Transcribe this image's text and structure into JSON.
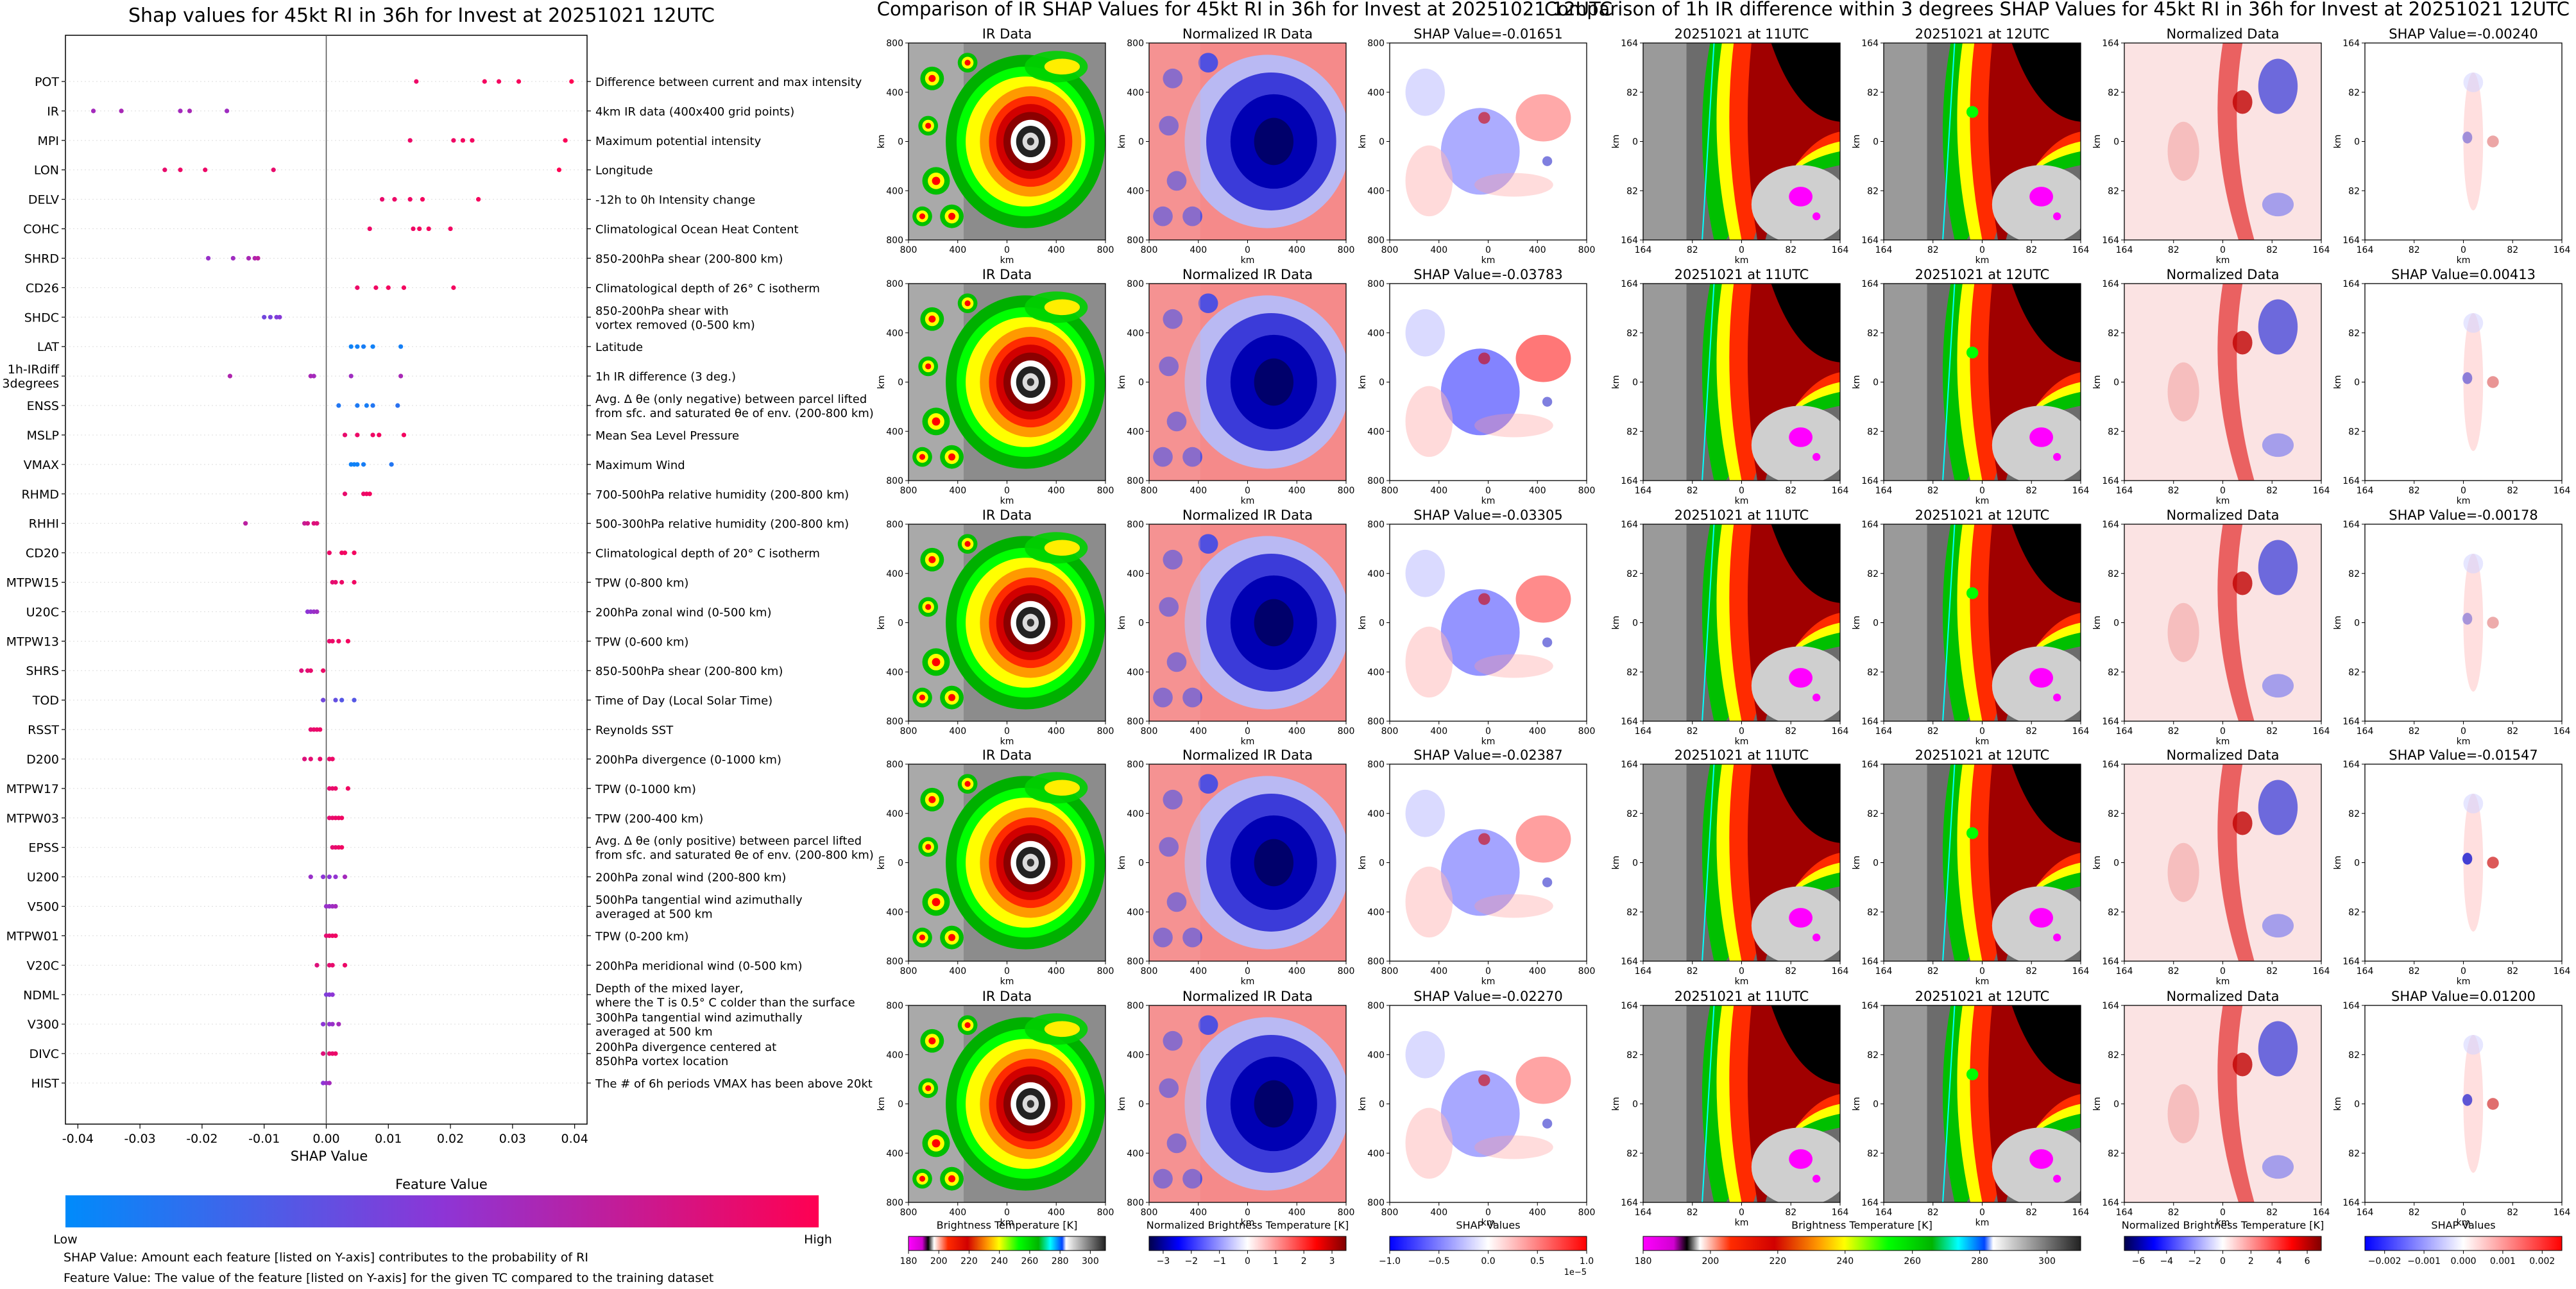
{
  "chart_data": [
    {
      "type": "scatter",
      "title": "Shap values for 45kt RI in 36h for Invest at 20251021 12UTC",
      "xlabel": "SHAP Value",
      "xlim": [
        -0.042,
        0.042
      ],
      "xticks": [
        "-0.04",
        "-0.03",
        "-0.02",
        "-0.01",
        "0.00",
        "0.01",
        "0.02",
        "0.03",
        "0.04"
      ],
      "xtick_values": [
        -0.04,
        -0.03,
        -0.02,
        -0.01,
        0,
        0.01,
        0.02,
        0.03,
        0.04
      ],
      "features": [
        {
          "name": "POT",
          "desc": [
            "Difference between current and max intensity"
          ],
          "x": [
            0.0145,
            0.0255,
            0.0278,
            0.031,
            0.0395
          ],
          "c": [
            0.92,
            0.95,
            0.95,
            0.97,
            1.0
          ]
        },
        {
          "name": "IR",
          "desc": [
            "4km IR data (400x400 grid points)"
          ],
          "x": [
            -0.0375,
            -0.033,
            -0.0235,
            -0.022,
            -0.016
          ],
          "c": [
            0.6,
            0.62,
            0.6,
            0.62,
            0.58
          ]
        },
        {
          "name": "MPI",
          "desc": [
            "Maximum potential intensity"
          ],
          "x": [
            0.0135,
            0.0205,
            0.022,
            0.0235,
            0.0385
          ],
          "c": [
            0.92,
            0.93,
            0.95,
            0.95,
            0.98
          ]
        },
        {
          "name": "LON",
          "desc": [
            "Longitude"
          ],
          "x": [
            -0.026,
            -0.0235,
            -0.0195,
            -0.0085,
            0.0375
          ],
          "c": [
            0.9,
            0.92,
            0.92,
            0.9,
            1.0
          ]
        },
        {
          "name": "DELV",
          "desc": [
            "-12h to 0h Intensity change"
          ],
          "x": [
            0.009,
            0.011,
            0.0135,
            0.0155,
            0.0245
          ],
          "c": [
            0.9,
            0.92,
            0.93,
            0.95,
            0.96
          ]
        },
        {
          "name": "COHC",
          "desc": [
            "Climatological Ocean Heat Content"
          ],
          "x": [
            0.007,
            0.014,
            0.015,
            0.0165,
            0.02
          ],
          "c": [
            0.92,
            0.93,
            0.95,
            0.95,
            0.94
          ]
        },
        {
          "name": "SHRD",
          "desc": [
            "850-200hPa shear (200-800 km)"
          ],
          "x": [
            -0.019,
            -0.015,
            -0.0125,
            -0.0115,
            -0.011
          ],
          "c": [
            0.55,
            0.58,
            0.62,
            0.66,
            0.7
          ]
        },
        {
          "name": "CD26",
          "desc": [
            "Climatological depth of 26° C isotherm"
          ],
          "x": [
            0.005,
            0.008,
            0.01,
            0.0125,
            0.0205
          ],
          "c": [
            0.92,
            0.94,
            0.95,
            0.95,
            0.95
          ]
        },
        {
          "name": "SHDC",
          "desc": [
            "850-200hPa shear with",
            "vortex removed (0-500 km)"
          ],
          "x": [
            -0.01,
            -0.009,
            -0.008,
            -0.0075
          ],
          "c": [
            0.4,
            0.42,
            0.45,
            0.48
          ]
        },
        {
          "name": "LAT",
          "desc": [
            "Latitude"
          ],
          "x": [
            0.004,
            0.005,
            0.006,
            0.0075,
            0.012
          ],
          "c": [
            0.05,
            0.06,
            0.08,
            0.06,
            0.07
          ]
        },
        {
          "name": "1h-IRdiff\n3degrees",
          "desc": [
            "1h IR difference (3 deg.)"
          ],
          "x": [
            -0.0155,
            -0.0025,
            -0.002,
            0.004,
            0.012
          ],
          "c": [
            0.65,
            0.62,
            0.6,
            0.58,
            0.62
          ]
        },
        {
          "name": "ENSS",
          "desc": [
            "Avg. Δ θe (only negative) between parcel lifted",
            "from sfc. and saturated θe of env. (200-800 km)"
          ],
          "x": [
            0.002,
            0.005,
            0.0065,
            0.0075,
            0.0115
          ],
          "c": [
            0.12,
            0.1,
            0.08,
            0.12,
            0.15
          ]
        },
        {
          "name": "MSLP",
          "desc": [
            "Mean Sea Level Pressure"
          ],
          "x": [
            0.003,
            0.005,
            0.0075,
            0.0085,
            0.0125
          ],
          "c": [
            0.9,
            0.92,
            0.93,
            0.95,
            0.95
          ]
        },
        {
          "name": "VMAX",
          "desc": [
            "Maximum Wind"
          ],
          "x": [
            0.004,
            0.0045,
            0.005,
            0.006,
            0.0105
          ],
          "c": [
            0.06,
            0.05,
            0.06,
            0.08,
            0.12
          ]
        },
        {
          "name": "RHMD",
          "desc": [
            "700-500hPa relative humidity (200-800 km)"
          ],
          "x": [
            0.003,
            0.006,
            0.0065,
            0.007
          ],
          "c": [
            0.9,
            0.92,
            0.93,
            0.95
          ]
        },
        {
          "name": "RHHI",
          "desc": [
            "500-300hPa relative humidity (200-800 km)"
          ],
          "x": [
            -0.013,
            -0.0035,
            -0.003,
            -0.002,
            -0.0015
          ],
          "c": [
            0.7,
            0.75,
            0.8,
            0.85,
            0.85
          ]
        },
        {
          "name": "CD20",
          "desc": [
            "Climatological depth of 20° C isotherm"
          ],
          "x": [
            0.0005,
            0.0025,
            0.003,
            0.0045
          ],
          "c": [
            0.92,
            0.93,
            0.95,
            0.95
          ]
        },
        {
          "name": "MTPW15",
          "desc": [
            "TPW (0-800 km)"
          ],
          "x": [
            0.001,
            0.0015,
            0.0025,
            0.0045
          ],
          "c": [
            0.88,
            0.9,
            0.92,
            0.94
          ]
        },
        {
          "name": "U20C",
          "desc": [
            "200hPa zonal wind (0-500 km)"
          ],
          "x": [
            -0.003,
            -0.0025,
            -0.002,
            -0.0015
          ],
          "c": [
            0.5,
            0.52,
            0.55,
            0.58
          ]
        },
        {
          "name": "MTPW13",
          "desc": [
            "TPW (0-600 km)"
          ],
          "x": [
            0.0005,
            0.001,
            0.002,
            0.0035
          ],
          "c": [
            0.9,
            0.92,
            0.93,
            0.95
          ]
        },
        {
          "name": "SHRS",
          "desc": [
            "850-500hPa shear (200-800 km)"
          ],
          "x": [
            -0.004,
            -0.003,
            -0.0025,
            -0.0005
          ],
          "c": [
            0.85,
            0.88,
            0.9,
            0.92
          ]
        },
        {
          "name": "TOD",
          "desc": [
            "Time of Day (Local Solar Time)"
          ],
          "x": [
            -0.0005,
            0.0015,
            0.0025,
            0.0045
          ],
          "c": [
            0.4,
            0.35,
            0.3,
            0.3
          ]
        },
        {
          "name": "RSST",
          "desc": [
            "Reynolds SST"
          ],
          "x": [
            -0.0025,
            -0.002,
            -0.0015,
            -0.001
          ],
          "c": [
            0.88,
            0.9,
            0.92,
            0.92
          ]
        },
        {
          "name": "D200",
          "desc": [
            "200hPa divergence (0-1000 km)"
          ],
          "x": [
            -0.0035,
            -0.0025,
            -0.001,
            0.0005,
            0.001
          ],
          "c": [
            0.85,
            0.88,
            0.9,
            0.9,
            0.92
          ]
        },
        {
          "name": "MTPW17",
          "desc": [
            "TPW (0-1000 km)"
          ],
          "x": [
            0.0005,
            0.001,
            0.0015,
            0.0035
          ],
          "c": [
            0.88,
            0.9,
            0.92,
            0.94
          ]
        },
        {
          "name": "MTPW03",
          "desc": [
            "TPW (200-400 km)"
          ],
          "x": [
            0.0005,
            0.001,
            0.0015,
            0.002,
            0.0025
          ],
          "c": [
            0.88,
            0.9,
            0.92,
            0.92,
            0.94
          ]
        },
        {
          "name": "EPSS",
          "desc": [
            "Avg. Δ θe (only positive) between parcel lifted",
            "from sfc. and saturated θe of env. (200-800 km)"
          ],
          "x": [
            0.001,
            0.0015,
            0.002,
            0.0025
          ],
          "c": [
            0.88,
            0.9,
            0.92,
            0.94
          ]
        },
        {
          "name": "U200",
          "desc": [
            "200hPa zonal wind (200-800 km)"
          ],
          "x": [
            -0.0025,
            -0.0005,
            0.0005,
            0.0015,
            0.003
          ],
          "c": [
            0.55,
            0.5,
            0.5,
            0.52,
            0.6
          ]
        },
        {
          "name": "V500",
          "desc": [
            "500hPa tangential wind azimuthally",
            "averaged at 500 km"
          ],
          "x": [
            0.0,
            0.0005,
            0.001,
            0.0015
          ],
          "c": [
            0.55,
            0.55,
            0.58,
            0.6
          ]
        },
        {
          "name": "MTPW01",
          "desc": [
            "TPW (0-200 km)"
          ],
          "x": [
            0.0,
            0.0005,
            0.001,
            0.0015
          ],
          "c": [
            0.88,
            0.9,
            0.92,
            0.94
          ]
        },
        {
          "name": "V20C",
          "desc": [
            "200hPa meridional wind (0-500 km)"
          ],
          "x": [
            -0.0015,
            0.0005,
            0.001,
            0.003
          ],
          "c": [
            0.85,
            0.88,
            0.9,
            0.92
          ]
        },
        {
          "name": "NDML",
          "desc": [
            "Depth of the mixed layer,",
            "where the T is 0.5° C colder than the surface"
          ],
          "x": [
            0.0,
            0.0005,
            0.001
          ],
          "c": [
            0.45,
            0.48,
            0.5
          ]
        },
        {
          "name": "V300",
          "desc": [
            "300hPa tangential wind azimuthally",
            "averaged at 500 km"
          ],
          "x": [
            -0.0005,
            0.0005,
            0.001,
            0.002
          ],
          "c": [
            0.5,
            0.52,
            0.55,
            0.6
          ]
        },
        {
          "name": "DIVC",
          "desc": [
            "200hPa divergence centered at",
            "850hPa vortex location"
          ],
          "x": [
            -0.0005,
            0.0005,
            0.001,
            0.0015
          ],
          "c": [
            0.85,
            0.88,
            0.9,
            0.92
          ]
        },
        {
          "name": "HIST",
          "desc": [
            "The # of 6h periods VMAX has been above 20kt"
          ],
          "x": [
            -0.0005,
            0.0,
            0.0005
          ],
          "c": [
            0.5,
            0.55,
            0.6
          ]
        }
      ],
      "colorbar": {
        "title": "Feature Value",
        "low": "Low",
        "high": "High",
        "low_color": "#008bfb",
        "high_color": "#ff0052"
      },
      "notes": [
        "SHAP Value: Amount each feature [listed on Y-axis] contributes to the probability of RI",
        "Feature Value: The value of the feature [listed on Y-axis] for the given TC compared to the training dataset"
      ]
    },
    {
      "type": "heatmap",
      "title": "Comparison of IR SHAP Values for 45kt RI in 36h for Invest at 20251021 12UTC",
      "columns": [
        "IR Data",
        "Normalized IR Data",
        "shap"
      ],
      "shap_titles": [
        "SHAP Value=-0.01651",
        "SHAP Value=-0.03783",
        "SHAP Value=-0.03305",
        "SHAP Value=-0.02387",
        "SHAP Value=-0.02270"
      ],
      "xticks": [
        "800",
        "400",
        "0",
        "400",
        "800"
      ],
      "yticks": [
        "800",
        "400",
        "0",
        "400",
        "800"
      ],
      "xlabel": "km",
      "ylabel": "km",
      "colorbars": [
        {
          "label": "Brightness Temperature [K]",
          "ticks": [
            "180",
            "200",
            "220",
            "240",
            "260",
            "280",
            "300"
          ],
          "range": [
            180,
            310
          ]
        },
        {
          "label": "Normalized Brightness Temperature [K]",
          "ticks": [
            "−3",
            "−2",
            "−1",
            "0",
            "1",
            "2",
            "3"
          ],
          "range": [
            -3.5,
            3.5
          ]
        },
        {
          "label": "SHAP Values",
          "ticks": [
            "−1.0",
            "−0.5",
            "0.0",
            "0.5",
            "1.0"
          ],
          "range": [
            -1,
            1
          ],
          "multiplier": "1e−5"
        }
      ]
    },
    {
      "type": "heatmap",
      "title": "Comparison of 1h IR difference within 3 degrees SHAP Values for 45kt RI in 36h for Invest at 20251021 12UTC",
      "columns": [
        "20251021 at 11UTC",
        "20251021 at 12UTC",
        "Normalized Data",
        "shap"
      ],
      "shap_titles": [
        "SHAP Value=-0.00240",
        "SHAP Value=0.00413",
        "SHAP Value=-0.00178",
        "SHAP Value=-0.01547",
        "SHAP Value=0.01200"
      ],
      "xticks": [
        "164",
        "82",
        "0",
        "82",
        "164"
      ],
      "yticks": [
        "164",
        "82",
        "0",
        "82",
        "164"
      ],
      "xlabel": "km",
      "ylabel": "km",
      "colorbars": [
        {
          "label": "Brightness Temperature [K]",
          "ticks": [
            "180",
            "200",
            "220",
            "240",
            "260",
            "280",
            "300"
          ],
          "range": [
            180,
            310
          ]
        },
        {
          "label": "Normalized Brightness Temperature [K]",
          "ticks": [
            "−6",
            "−4",
            "−2",
            "0",
            "2",
            "4",
            "6"
          ],
          "range": [
            -7,
            7
          ]
        },
        {
          "label": "SHAP Values",
          "ticks": [
            "−0.002",
            "−0.001",
            "0.000",
            "0.001",
            "0.002"
          ],
          "range": [
            -0.0025,
            0.0025
          ]
        }
      ]
    }
  ]
}
